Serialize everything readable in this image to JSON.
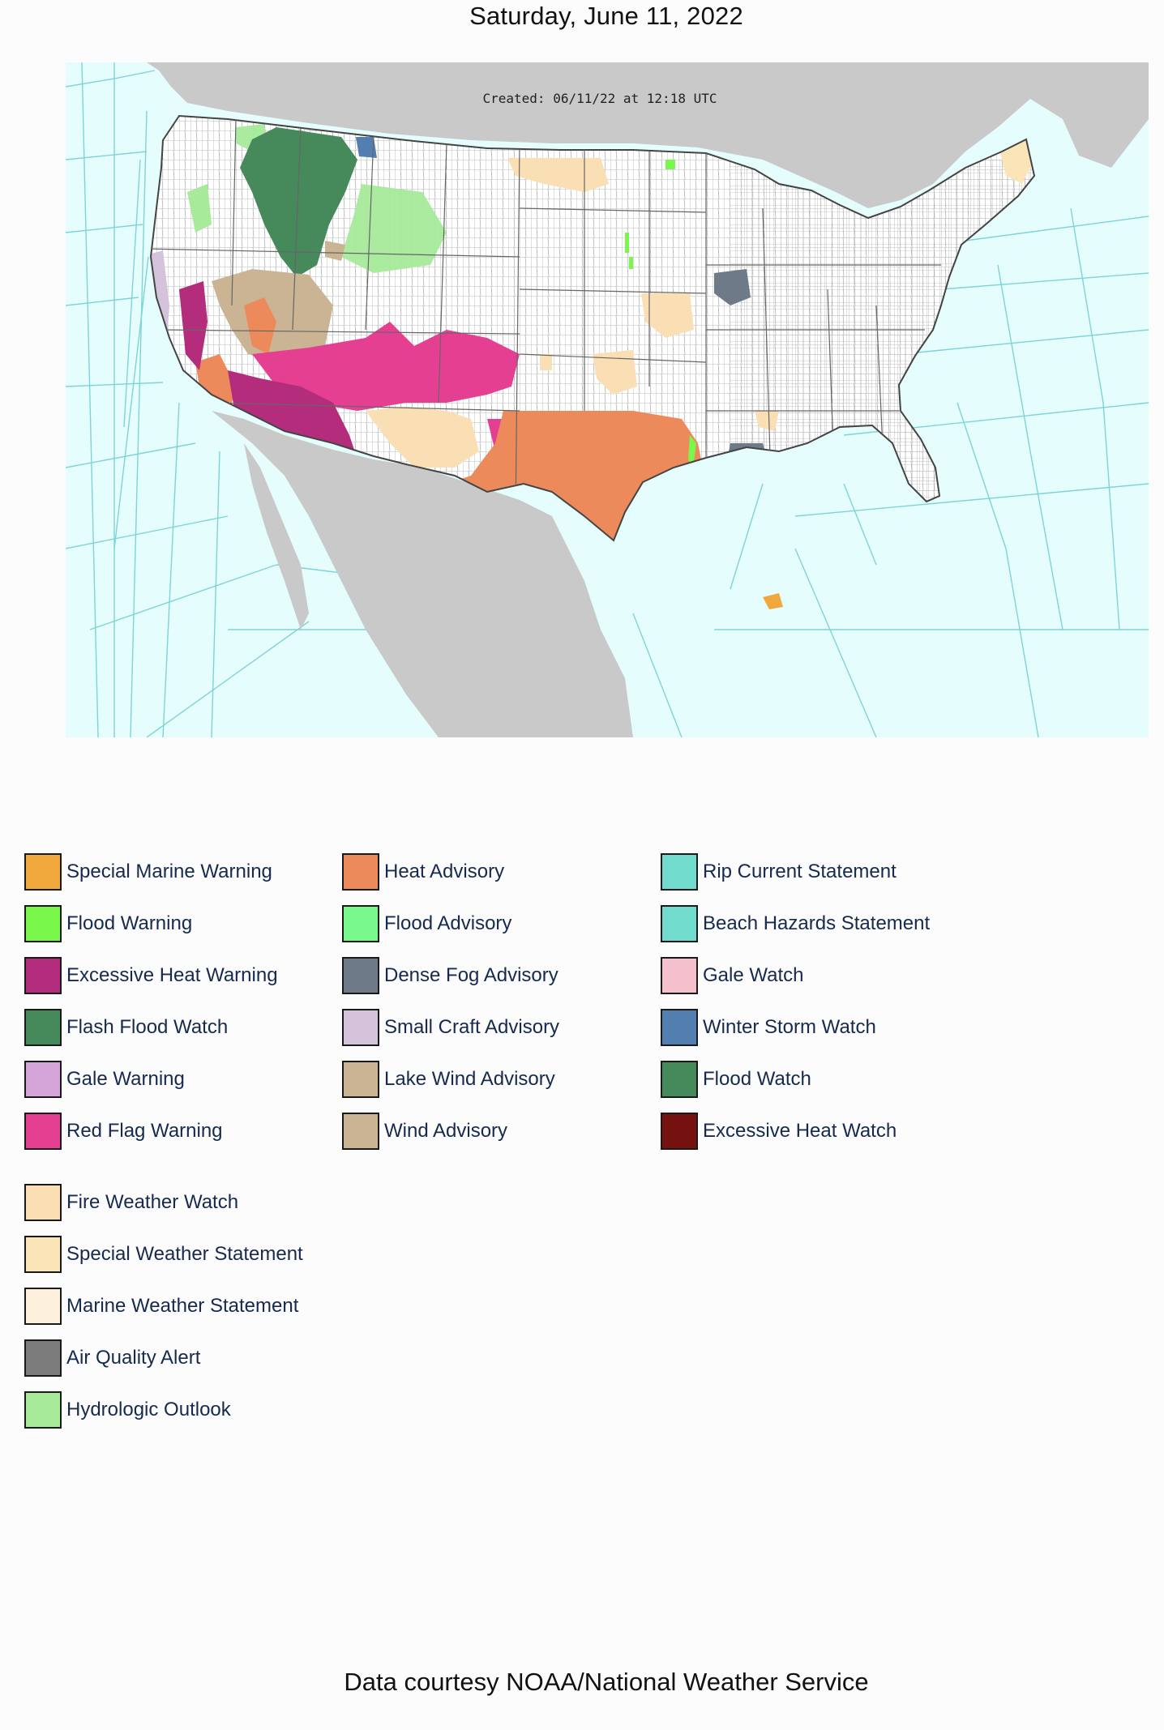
{
  "header": {
    "date": "Saturday, June 11, 2022"
  },
  "map": {
    "created_stamp": "Created: 06/11/22 at 12:18 UTC",
    "colors": {
      "ocean": "#e6fdfd",
      "land_outside": "#c9c9c9",
      "land_us": "#ffffff",
      "zone_lines": "#7fd3d6",
      "county_lines": "#9a9a9a"
    }
  },
  "legend": {
    "columns": [
      [
        {
          "label": "Special Marine Warning",
          "color": "#f0a83c"
        },
        {
          "label": "Flood Warning",
          "color": "#79f74a"
        },
        {
          "label": "Excessive Heat Warning",
          "color": "#b32d7c"
        },
        {
          "label": "Flash Flood Watch",
          "color": "#468a5c"
        },
        {
          "label": "Gale Warning",
          "color": "#d5a4d8"
        },
        {
          "label": "Red Flag Warning",
          "color": "#e53f92"
        }
      ],
      [
        {
          "label": "Heat Advisory",
          "color": "#ed8a5b"
        },
        {
          "label": "Flood Advisory",
          "color": "#79f98c"
        },
        {
          "label": "Dense Fog Advisory",
          "color": "#6f7a88"
        },
        {
          "label": "Small Craft Advisory",
          "color": "#d5c2db"
        },
        {
          "label": "Lake Wind Advisory",
          "color": "#cbb493"
        },
        {
          "label": "Wind Advisory",
          "color": "#cbb493"
        }
      ],
      [
        {
          "label": "Rip Current Statement",
          "color": "#71dcce"
        },
        {
          "label": "Beach Hazards Statement",
          "color": "#71dcce"
        },
        {
          "label": "Gale Watch",
          "color": "#f4c0cb"
        },
        {
          "label": "Winter Storm Watch",
          "color": "#537fb0"
        },
        {
          "label": "Flood Watch",
          "color": "#468a5c"
        },
        {
          "label": "Excessive Heat Watch",
          "color": "#75120f"
        }
      ]
    ],
    "extra": [
      {
        "label": "Fire Weather Watch",
        "color": "#fbdfb4"
      },
      {
        "label": "Special Weather Statement",
        "color": "#fbe4b8"
      },
      {
        "label": "Marine Weather Statement",
        "color": "#fdf1dd"
      },
      {
        "label": "Air Quality Alert",
        "color": "#7c7c7c"
      },
      {
        "label": "Hydrologic Outlook",
        "color": "#a6ea9a"
      }
    ]
  },
  "footer": {
    "credit": "Data courtesy NOAA/National Weather Service"
  }
}
